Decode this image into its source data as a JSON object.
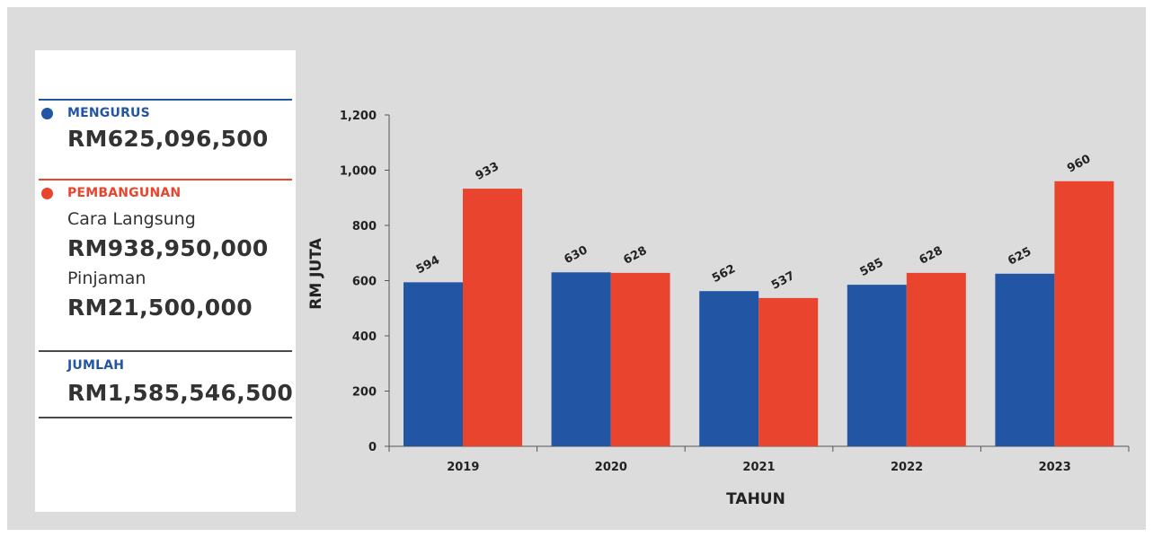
{
  "legend": {
    "mengurus": {
      "label": "MENGURUS",
      "amount": "RM625,096,500",
      "color": "#2255a4"
    },
    "pembangunan": {
      "label": "PEMBANGUNAN",
      "color": "#e8442e",
      "cara_langsung_label": "Cara Langsung",
      "cara_langsung_amount": "RM938,950,000",
      "pinjaman_label": "Pinjaman",
      "pinjaman_amount": "RM21,500,000"
    },
    "jumlah": {
      "label": "JUMLAH",
      "amount": "RM1,585,546,500"
    }
  },
  "chart_data": {
    "type": "bar",
    "categories": [
      "2019",
      "2020",
      "2021",
      "2022",
      "2023"
    ],
    "series": [
      {
        "values": [
          594,
          630,
          562,
          585,
          625
        ],
        "color": "#2255a4"
      },
      {
        "values": [
          933,
          628,
          537,
          628,
          960
        ],
        "color": "#e8442e"
      }
    ],
    "xlabel": "TAHUN",
    "ylabel": "RM JUTA",
    "ylim": [
      0,
      1200
    ],
    "yticks": [
      0,
      200,
      400,
      600,
      800,
      1000,
      1200
    ],
    "ytick_labels": [
      "0",
      "200",
      "400",
      "600",
      "800",
      "1,000",
      "1,200"
    ],
    "data_labels": true,
    "grid": false
  }
}
